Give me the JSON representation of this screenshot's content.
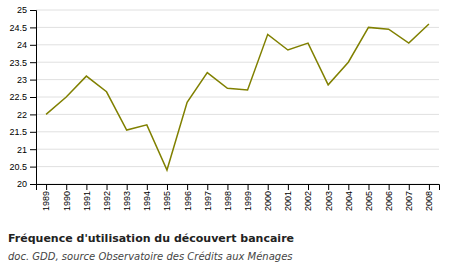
{
  "chart_data": {
    "type": "line",
    "title": "Fréquence d'utilisation du découvert bancaire",
    "subtitle": "doc. GDD, source Observatoire des Crédits aux Ménages",
    "x": [
      1989,
      1990,
      1991,
      1992,
      1993,
      1994,
      1995,
      1996,
      1997,
      1998,
      1999,
      2000,
      2001,
      2002,
      2003,
      2004,
      2005,
      2006,
      2007,
      2008
    ],
    "values": [
      22.0,
      22.5,
      23.1,
      22.65,
      21.55,
      21.7,
      20.4,
      22.35,
      23.2,
      22.75,
      22.7,
      24.3,
      23.85,
      24.05,
      22.85,
      23.5,
      24.5,
      24.45,
      24.05,
      24.6
    ],
    "color": "#808000",
    "xlim": [
      1988.5,
      2008.5
    ],
    "xticks": [
      1989,
      1990,
      1991,
      1992,
      1993,
      1994,
      1995,
      1996,
      1997,
      1998,
      1999,
      2000,
      2001,
      2002,
      2003,
      2004,
      2005,
      2006,
      2007,
      2008
    ],
    "ylim": [
      20,
      25
    ],
    "yticks": [
      20,
      20.5,
      21,
      21.5,
      22,
      22.5,
      23,
      23.5,
      24,
      24.5,
      25
    ],
    "grid": true
  }
}
